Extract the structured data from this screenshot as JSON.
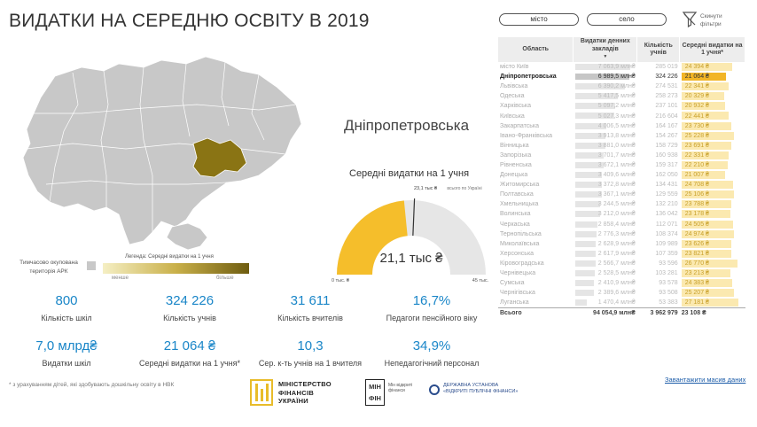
{
  "title": "ВИДАТКИ НА СЕРЕДНЮ ОСВІТУ В 2019",
  "map_legend": {
    "occupied_text": "Тимчасово окупована територія АРК",
    "title": "Легенда: Середні видатки на 1 учня",
    "min_label": "менше",
    "max_label": "більше",
    "occupied_color": "#c8c8c8",
    "highlight_color": "#8a7414"
  },
  "selected_region": "Дніпропетровська",
  "gauge": {
    "label": "Середні видатки на 1 учня",
    "value_text": "21,1 тыс ₴",
    "min_text": "0 тыс. ₴",
    "max_text": "45 тыс.",
    "target_text": "23,1 тыс ₴",
    "target_label": "всього по Україні",
    "value": 21.1,
    "min": 0,
    "max": 45,
    "target": 23.1,
    "fill_color": "#f5be2b",
    "track_color": "#e6e6e6"
  },
  "kpis": [
    {
      "value": "800",
      "label": "Кількість шкіл"
    },
    {
      "value": "324 226",
      "label": "Кількість учнів"
    },
    {
      "value": "31 611",
      "label": "Кількість вчителів"
    },
    {
      "value": "16,7%",
      "label": "Педагоги пенсійного віку"
    },
    {
      "value": "7,0 млрд₴",
      "label": "Видатки шкіл"
    },
    {
      "value": "21 064 ₴",
      "label": "Середні видатки на 1 учня*"
    },
    {
      "value": "10,3",
      "label": "Сер. к-ть учнів на 1 вчителя"
    },
    {
      "value": "34,9%",
      "label": "Непедагогічний персонал"
    }
  ],
  "footnote": "* з урахуванням дітей, які здобувають дошкільну освіту в НВК",
  "logos": {
    "minfin_text": [
      "МІНІСТЕРСТВО",
      "ФІНАНСІВ",
      "УКРАЇНИ"
    ],
    "minfin2_box": [
      "МІН",
      "ФІН"
    ],
    "minfin2_text": "Мін відкриті фінанси",
    "state_text": "ДЕРЖАВНА УСТАНОВА «ВІДКРИТІ ПУБЛІЧНІ ФІНАНСИ»"
  },
  "filters": {
    "city": "місто",
    "village": "село",
    "reset": "Скинути фільтри"
  },
  "table": {
    "headers": [
      "Область",
      "Видатки денних закладів",
      "Кількість учнів",
      "Середні видатки на 1 учня*"
    ],
    "rows": [
      {
        "region": "місто Київ",
        "exp": "7 063,9 млн₴",
        "exp_v": 7063.9,
        "students": "285 019",
        "avg": "24 394 ₴",
        "avg_v": 24394
      },
      {
        "region": "Дніпропетровська",
        "exp": "6 989,5 млн₴",
        "exp_v": 6989.5,
        "students": "324 226",
        "avg": "21 064 ₴",
        "avg_v": 21064,
        "selected": true
      },
      {
        "region": "Львівська",
        "exp": "6 390,2 млн₴",
        "exp_v": 6390.2,
        "students": "274 531",
        "avg": "22 341 ₴",
        "avg_v": 22341
      },
      {
        "region": "Одеська",
        "exp": "5 417,5 млн₴",
        "exp_v": 5417.5,
        "students": "258 273",
        "avg": "20 329 ₴",
        "avg_v": 20329
      },
      {
        "region": "Харківська",
        "exp": "5 097,2 млн₴",
        "exp_v": 5097.2,
        "students": "237 101",
        "avg": "20 932 ₴",
        "avg_v": 20932
      },
      {
        "region": "Київська",
        "exp": "5 027,3 млн₴",
        "exp_v": 5027.3,
        "students": "216 604",
        "avg": "22 441 ₴",
        "avg_v": 22441
      },
      {
        "region": "Закарпатська",
        "exp": "4 006,5 млн₴",
        "exp_v": 4006.5,
        "students": "164 167",
        "avg": "23 730 ₴",
        "avg_v": 23730
      },
      {
        "region": "Івано-Франківська",
        "exp": "3 913,8 млн₴",
        "exp_v": 3913.8,
        "students": "154 267",
        "avg": "25 228 ₴",
        "avg_v": 25228
      },
      {
        "region": "Вінницька",
        "exp": "3 881,0 млн₴",
        "exp_v": 3881.0,
        "students": "158 729",
        "avg": "23 691 ₴",
        "avg_v": 23691
      },
      {
        "region": "Запорізька",
        "exp": "3 701,7 млн₴",
        "exp_v": 3701.7,
        "students": "160 938",
        "avg": "22 331 ₴",
        "avg_v": 22331
      },
      {
        "region": "Рівненська",
        "exp": "3 672,1 млн₴",
        "exp_v": 3672.1,
        "students": "159 317",
        "avg": "22 210 ₴",
        "avg_v": 22210
      },
      {
        "region": "Донецька",
        "exp": "3 409,6 млн₴",
        "exp_v": 3409.6,
        "students": "162 050",
        "avg": "21 007 ₴",
        "avg_v": 21007
      },
      {
        "region": "Житомирська",
        "exp": "3 372,8 млн₴",
        "exp_v": 3372.8,
        "students": "134 431",
        "avg": "24 708 ₴",
        "avg_v": 24708
      },
      {
        "region": "Полтавська",
        "exp": "3 367,1 млн₴",
        "exp_v": 3367.1,
        "students": "129 559",
        "avg": "25 106 ₴",
        "avg_v": 25106
      },
      {
        "region": "Хмельницька",
        "exp": "3 244,5 млн₴",
        "exp_v": 3244.5,
        "students": "132 210",
        "avg": "23 788 ₴",
        "avg_v": 23788
      },
      {
        "region": "Волинська",
        "exp": "3 212,0 млн₴",
        "exp_v": 3212.0,
        "students": "136 042",
        "avg": "23 178 ₴",
        "avg_v": 23178
      },
      {
        "region": "Черкаська",
        "exp": "2 858,4 млн₴",
        "exp_v": 2858.4,
        "students": "112 071",
        "avg": "24 505 ₴",
        "avg_v": 24505
      },
      {
        "region": "Тернопільська",
        "exp": "2 776,3 млн₴",
        "exp_v": 2776.3,
        "students": "108 374",
        "avg": "24 974 ₴",
        "avg_v": 24974
      },
      {
        "region": "Миколаївська",
        "exp": "2 628,9 млн₴",
        "exp_v": 2628.9,
        "students": "109 989",
        "avg": "23 626 ₴",
        "avg_v": 23626
      },
      {
        "region": "Херсонська",
        "exp": "2 617,9 млн₴",
        "exp_v": 2617.9,
        "students": "107 359",
        "avg": "23 821 ₴",
        "avg_v": 23821
      },
      {
        "region": "Кіровоградська",
        "exp": "2 566,7 млн₴",
        "exp_v": 2566.7,
        "students": "93 596",
        "avg": "26 770 ₴",
        "avg_v": 26770
      },
      {
        "region": "Чернівецька",
        "exp": "2 528,5 млн₴",
        "exp_v": 2528.5,
        "students": "103 281",
        "avg": "23 213 ₴",
        "avg_v": 23213
      },
      {
        "region": "Сумська",
        "exp": "2 410,9 млн₴",
        "exp_v": 2410.9,
        "students": "93 578",
        "avg": "24 383 ₴",
        "avg_v": 24383
      },
      {
        "region": "Чернігівська",
        "exp": "2 389,6 млн₴",
        "exp_v": 2389.6,
        "students": "93 508",
        "avg": "25 207 ₴",
        "avg_v": 25207
      },
      {
        "region": "Луганська",
        "exp": "1 470,4 млн₴",
        "exp_v": 1470.4,
        "students": "53 383",
        "avg": "27 181 ₴",
        "avg_v": 27181
      }
    ],
    "total": {
      "region": "Всього",
      "exp": "94 054,9 млн₴",
      "students": "3 962 979",
      "avg": "23 108 ₴"
    }
  },
  "download_link": "Завантажити масив даних"
}
